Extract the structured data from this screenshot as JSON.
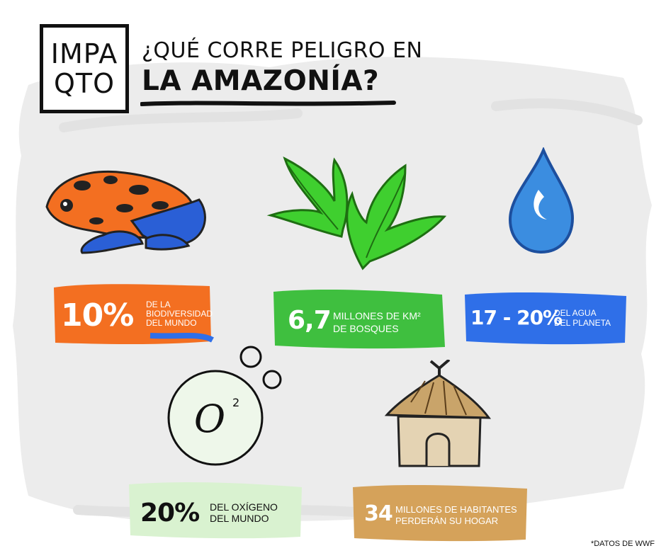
{
  "logo": {
    "line1": "IMPA",
    "line2": "QTO"
  },
  "title": {
    "line1": "¿QUÉ CORRE PELIGRO EN",
    "line2": "LA AMAZONÍA?"
  },
  "stats": {
    "biodiversity": {
      "value": "10%",
      "line1": "DE LA",
      "line2": "BIODIVERSIDAD",
      "line3": "DEL MUNDO",
      "color": "#f36f21",
      "icon": "frog-icon"
    },
    "forests": {
      "value": "6,7",
      "line1": "MILLONES DE KM²",
      "line2": "DE BOSQUES",
      "color": "#3fbf3f",
      "icon": "leaves-icon"
    },
    "water": {
      "value": "17 - 20%",
      "line1": "DEL AGUA",
      "line2": "DEL PLANETA",
      "color": "#2f6fe8",
      "icon": "water-drop-icon"
    },
    "oxygen": {
      "value": "20%",
      "line1": "DEL OXÍGENO",
      "line2": "DEL MUNDO",
      "color": "#d9f2d0",
      "icon": "oxygen-bubble-icon",
      "symbol": "O",
      "superscript": "2"
    },
    "inhabitants": {
      "value": "34",
      "line1": "MILLONES DE HABITANTES",
      "line2": "PERDERÁN SU HOGAR",
      "color": "#d5a25a",
      "icon": "hut-icon"
    }
  },
  "footnote": "*DATOS DE WWF"
}
